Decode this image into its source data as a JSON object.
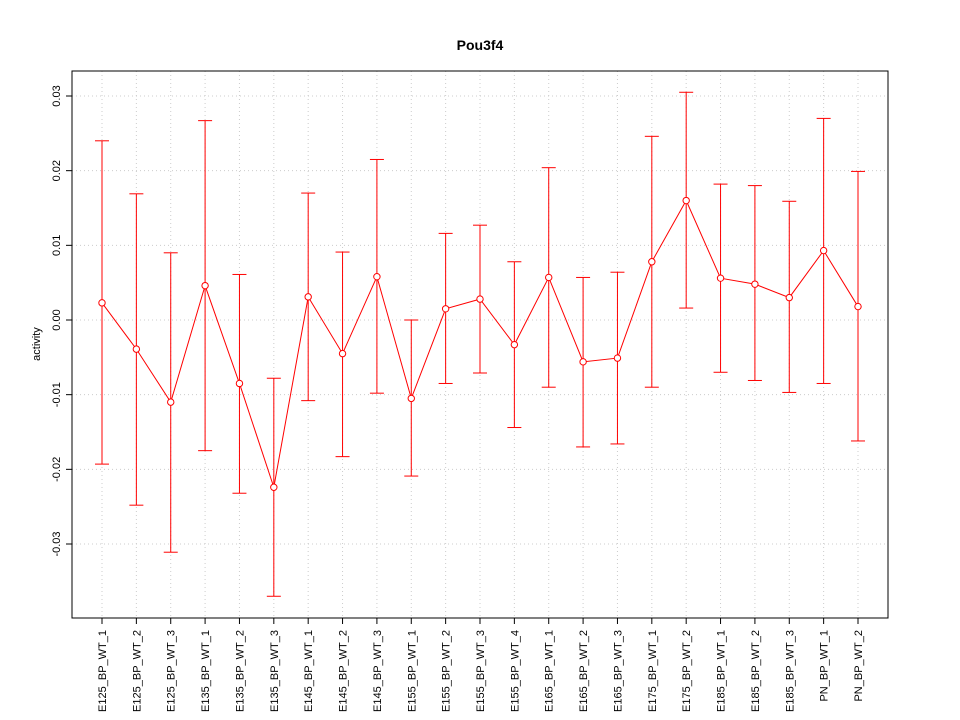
{
  "chart_data": {
    "type": "line",
    "title": "Pou3f4",
    "xlabel": "",
    "ylabel": "activity",
    "ylim": [
      -0.04,
      0.033
    ],
    "yticks": [
      -0.03,
      -0.02,
      -0.01,
      0.0,
      0.01,
      0.02,
      0.03
    ],
    "ytick_labels": [
      "-0.03",
      "-0.02",
      "-0.01",
      "0.00",
      "0.01",
      "0.02",
      "0.03"
    ],
    "grid": true,
    "colors": {
      "series": "#ff0000",
      "grid": "#cccccc",
      "frame": "#000000"
    },
    "categories": [
      "E125_BP_WT_1",
      "E125_BP_WT_2",
      "E125_BP_WT_3",
      "E135_BP_WT_1",
      "E135_BP_WT_2",
      "E135_BP_WT_3",
      "E145_BP_WT_1",
      "E145_BP_WT_2",
      "E145_BP_WT_3",
      "E155_BP_WT_1",
      "E155_BP_WT_2",
      "E155_BP_WT_3",
      "E155_BP_WT_4",
      "E165_BP_WT_1",
      "E165_BP_WT_2",
      "E165_BP_WT_3",
      "E175_BP_WT_1",
      "E175_BP_WT_2",
      "E185_BP_WT_1",
      "E185_BP_WT_2",
      "E185_BP_WT_3",
      "PN_BP_WT_1",
      "PN_BP_WT_2"
    ],
    "series": [
      {
        "values": [
          0.0023,
          -0.0039,
          -0.011,
          0.0046,
          -0.0085,
          -0.0224,
          0.0031,
          -0.0045,
          0.0058,
          -0.0105,
          0.0015,
          0.0028,
          -0.0033,
          0.0057,
          -0.0056,
          -0.0051,
          0.0078,
          0.016,
          0.0056,
          0.0048,
          0.003,
          0.0093,
          0.0018
        ],
        "upper": [
          0.024,
          0.0169,
          0.009,
          0.0267,
          0.0061,
          -0.0078,
          0.017,
          0.0091,
          0.0215,
          0.0,
          0.0116,
          0.0127,
          0.0078,
          0.0204,
          0.0057,
          0.0064,
          0.0246,
          0.0305,
          0.0182,
          0.018,
          0.0159,
          0.027,
          0.0199
        ],
        "lower": [
          -0.0193,
          -0.0248,
          -0.0311,
          -0.0175,
          -0.0232,
          -0.037,
          -0.0108,
          -0.0183,
          -0.0098,
          -0.0209,
          -0.0085,
          -0.0071,
          -0.0144,
          -0.009,
          -0.017,
          -0.0166,
          -0.009,
          0.0016,
          -0.007,
          -0.0081,
          -0.0097,
          -0.0085,
          -0.0162
        ]
      }
    ]
  }
}
